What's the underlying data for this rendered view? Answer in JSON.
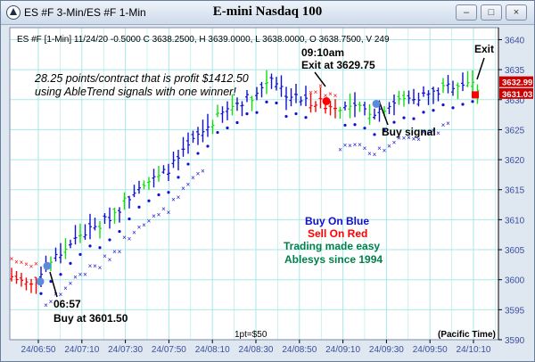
{
  "window": {
    "title": "ES #F 3-Min/ES #F 1-Min",
    "buttons": {
      "minimize": "–",
      "maximize": "□",
      "close": "×"
    }
  },
  "chart_data": {
    "type": "candlestick",
    "title": "E-mini Nasdaq 100",
    "info_line": "ES #F [1-Min] 11/24/20  -0.5000 C 3638.2500, H 3639.0000, L 3638.0000, O 3638.7500, V 249",
    "ylim": [
      3590,
      3642
    ],
    "y_ticks": [
      3590,
      3595,
      3600,
      3605,
      3610,
      3615,
      3620,
      3625,
      3630,
      3635,
      3640
    ],
    "x_tick_labels": [
      "24/06:50",
      "24/07:10",
      "24/07:30",
      "24/07:50",
      "24/08:10",
      "24/08:30",
      "24/08:50",
      "24/09:10",
      "24/09:30",
      "24/09:50",
      "24/10:10"
    ],
    "footer": {
      "center": "1pt=$50",
      "right": "(Pacific Time)"
    },
    "price_tags": [
      {
        "text": "3632.99",
        "value": 3632.99,
        "color": "#cc0000"
      },
      {
        "text": "3631.03",
        "value": 3631.03,
        "color": "#cc0000"
      }
    ],
    "annotations": {
      "profit_line1": "28.25 points/contract that is profit $1412.50",
      "profit_line2": "using AbleTrend signals with one winner!",
      "exit_time": "09:10am",
      "exit_price": "Exit at 3629.75",
      "exit": "Exit",
      "buy_signal": "Buy signal",
      "entry_time": "06:57",
      "entry_price": "Buy at 3601.50",
      "legend_blue": "Buy On Blue",
      "legend_red": "Sell On Red",
      "slogan1": "Trading made easy",
      "slogan2": "Ablesys since 1994"
    },
    "colors": {
      "blue": "#1010d0",
      "red": "#ff0000",
      "green": "#11dd11",
      "slogan": "#00804a",
      "grid": "#a9e8e8",
      "marker": "#5b8cd9"
    },
    "key_points": [
      {
        "label": "entry",
        "bar": 6,
        "price": 3601.5
      },
      {
        "label": "exit",
        "bar": 62,
        "price": 3629.75
      }
    ]
  }
}
